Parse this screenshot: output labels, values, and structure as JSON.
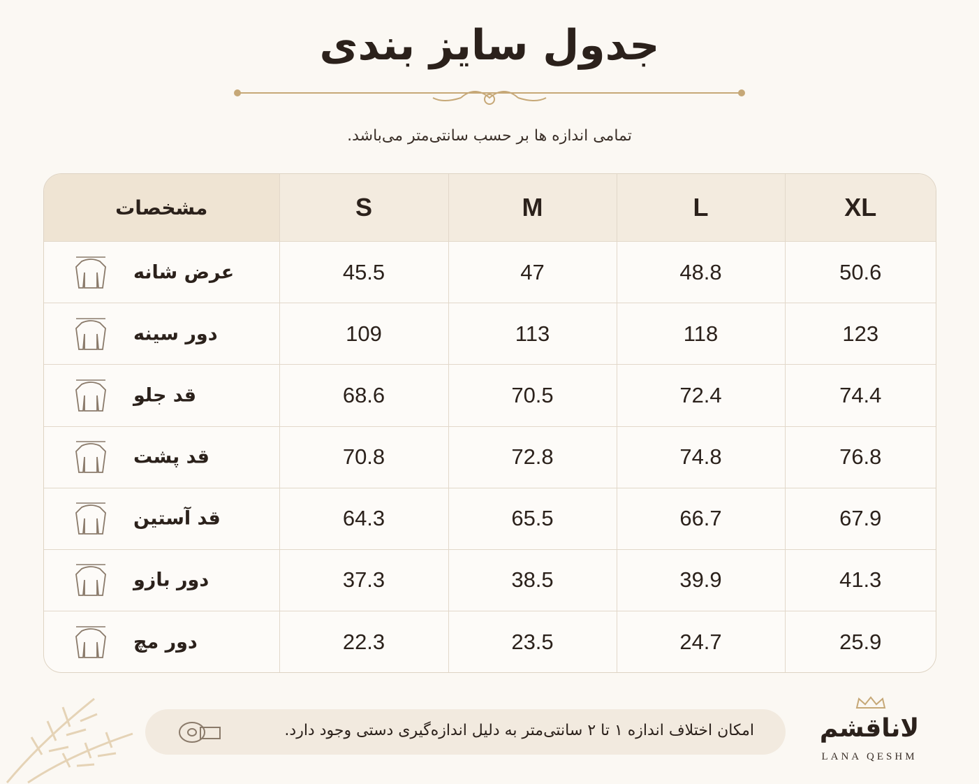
{
  "header": {
    "title": "جدول سایز بندی",
    "subtitle": "تمامی اندازه ها بر حسب سانتی‌متر می‌باشد."
  },
  "table": {
    "columns": [
      "مشخصات",
      "S",
      "M",
      "L",
      "XL"
    ],
    "rows": [
      {
        "label": "عرض شانه",
        "values": [
          45.5,
          47,
          48.8,
          50.6
        ]
      },
      {
        "label": "دور سینه",
        "values": [
          109,
          113,
          118,
          123
        ]
      },
      {
        "label": "قد جلو",
        "values": [
          68.6,
          70.5,
          72.4,
          74.4
        ]
      },
      {
        "label": "قد پشت",
        "values": [
          70.8,
          72.8,
          74.8,
          76.8
        ]
      },
      {
        "label": "قد آستین",
        "values": [
          64.3,
          65.5,
          66.7,
          67.9
        ]
      },
      {
        "label": "دور بازو",
        "values": [
          37.3,
          38.5,
          39.9,
          41.3
        ]
      },
      {
        "label": "دور مچ",
        "values": [
          22.3,
          23.5,
          24.7,
          25.9
        ]
      }
    ]
  },
  "footer": {
    "note": "امکان اختلاف اندازه ۱ تا ۲ سانتی‌متر به دلیل اندازه‌گیری دستی وجود دارد.",
    "brand": "لاناقشم",
    "brand_latin": "LANA QESHM"
  }
}
